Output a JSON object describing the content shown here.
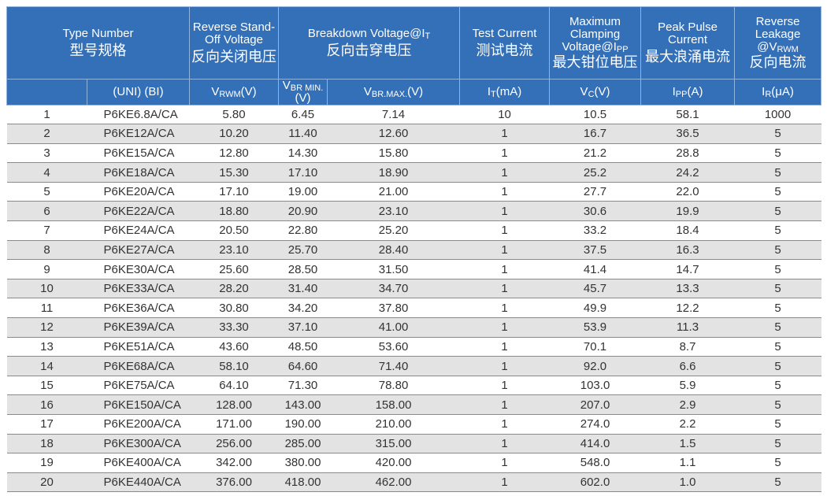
{
  "header": {
    "type_number": {
      "en": "Type Number",
      "cn": "型号规格"
    },
    "standoff": {
      "en": "Reverse Stand-Off Voltage",
      "cn": "反向关闭电压"
    },
    "breakdown": {
      "en": "Breakdown   Voltage@I",
      "en_sub": "T",
      "cn": "反向击穿电压"
    },
    "test_current": {
      "en": "Test Current",
      "cn": "测试电流"
    },
    "clamping": {
      "en": "Maximum Clamping Voltage@I",
      "en_sub": "PP",
      "cn": "最大钳位电压"
    },
    "peak_pulse": {
      "en": "Peak Pulse Current",
      "cn": "最大浪涌电流"
    },
    "leakage": {
      "en": "Reverse Leakage @V",
      "en_sub": "RWM",
      "cn": "反向电流"
    }
  },
  "units": [
    {
      "main": "",
      "sub": "",
      "suffix": ""
    },
    {
      "main": "(UNI)  (BI)",
      "sub": "",
      "suffix": ""
    },
    {
      "main": "V",
      "sub": "RWM",
      "suffix": "(V)"
    },
    {
      "main": "V",
      "sub": "BR MIN.",
      "suffix": "(V)"
    },
    {
      "main": "V",
      "sub": "BR.MAX.",
      "suffix": "(V)"
    },
    {
      "main": "I",
      "sub": "T",
      "suffix": "(mA)"
    },
    {
      "main": "V",
      "sub": "C",
      "suffix": "(V)"
    },
    {
      "main": "I",
      "sub": "PP",
      "suffix": "(A)"
    },
    {
      "main": "I",
      "sub": "R",
      "suffix": "(μA)"
    }
  ],
  "rows": [
    [
      "1",
      "P6KE6.8A/CA",
      "5.80",
      "6.45",
      "7.14",
      "10",
      "10.5",
      "58.1",
      "1000"
    ],
    [
      "2",
      "P6KE12A/CA",
      "10.20",
      "11.40",
      "12.60",
      "1",
      "16.7",
      "36.5",
      "5"
    ],
    [
      "3",
      "P6KE15A/CA",
      "12.80",
      "14.30",
      "15.80",
      "1",
      "21.2",
      "28.8",
      "5"
    ],
    [
      "4",
      "P6KE18A/CA",
      "15.30",
      "17.10",
      "18.90",
      "1",
      "25.2",
      "24.2",
      "5"
    ],
    [
      "5",
      "P6KE20A/CA",
      "17.10",
      "19.00",
      "21.00",
      "1",
      "27.7",
      "22.0",
      "5"
    ],
    [
      "6",
      "P6KE22A/CA",
      "18.80",
      "20.90",
      "23.10",
      "1",
      "30.6",
      "19.9",
      "5"
    ],
    [
      "7",
      "P6KE24A/CA",
      "20.50",
      "22.80",
      "25.20",
      "1",
      "33.2",
      "18.4",
      "5"
    ],
    [
      "8",
      "P6KE27A/CA",
      "23.10",
      "25.70",
      "28.40",
      "1",
      "37.5",
      "16.3",
      "5"
    ],
    [
      "9",
      "P6KE30A/CA",
      "25.60",
      "28.50",
      "31.50",
      "1",
      "41.4",
      "14.7",
      "5"
    ],
    [
      "10",
      "P6KE33A/CA",
      "28.20",
      "31.40",
      "34.70",
      "1",
      "45.7",
      "13.3",
      "5"
    ],
    [
      "11",
      "P6KE36A/CA",
      "30.80",
      "34.20",
      "37.80",
      "1",
      "49.9",
      "12.2",
      "5"
    ],
    [
      "12",
      "P6KE39A/CA",
      "33.30",
      "37.10",
      "41.00",
      "1",
      "53.9",
      "11.3",
      "5"
    ],
    [
      "13",
      "P6KE51A/CA",
      "43.60",
      "48.50",
      "53.60",
      "1",
      "70.1",
      "8.7",
      "5"
    ],
    [
      "14",
      "P6KE68A/CA",
      "58.10",
      "64.60",
      "71.40",
      "1",
      "92.0",
      "6.6",
      "5"
    ],
    [
      "15",
      "P6KE75A/CA",
      "64.10",
      "71.30",
      "78.80",
      "1",
      "103.0",
      "5.9",
      "5"
    ],
    [
      "16",
      "P6KE150A/CA",
      "128.00",
      "143.00",
      "158.00",
      "1",
      "207.0",
      "2.9",
      "5"
    ],
    [
      "17",
      "P6KE200A/CA",
      "171.00",
      "190.00",
      "210.00",
      "1",
      "274.0",
      "2.2",
      "5"
    ],
    [
      "18",
      "P6KE300A/CA",
      "256.00",
      "285.00",
      "315.00",
      "1",
      "414.0",
      "1.5",
      "5"
    ],
    [
      "19",
      "P6KE400A/CA",
      "342.00",
      "380.00",
      "420.00",
      "1",
      "548.0",
      "1.1",
      "5"
    ],
    [
      "20",
      "P6KE440A/CA",
      "376.00",
      "418.00",
      "462.00",
      "1",
      "602.0",
      "1.0",
      "5"
    ]
  ],
  "colors": {
    "header_bg": "#3470b8",
    "stripe": "#e3e3e3"
  }
}
